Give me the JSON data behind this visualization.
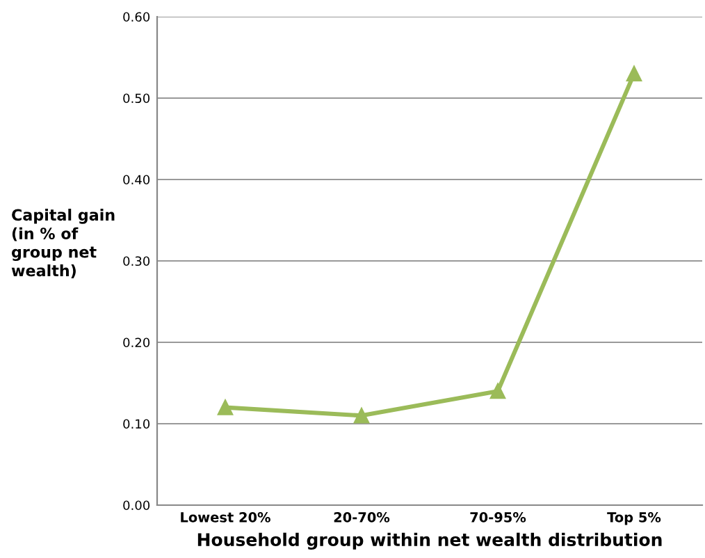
{
  "chart_data": {
    "type": "line",
    "xlabel": "Household group within net wealth distribution",
    "ylabel": "Capital gain\n(in % of\ngroup net\nwealth)",
    "categories": [
      "Lowest 20%",
      "20-70%",
      "70-95%",
      "Top 5%"
    ],
    "series": [
      {
        "color": "#9bbb59",
        "values": [
          0.12,
          0.11,
          0.14,
          0.53
        ]
      }
    ],
    "ylim": [
      0,
      0.6
    ],
    "yticks": [
      {
        "value": 0,
        "label": "0.00"
      },
      {
        "value": 0.1,
        "label": "0.10"
      },
      {
        "value": 0.2,
        "label": "0.20"
      },
      {
        "value": 0.3,
        "label": "0.30"
      },
      {
        "value": 0.4,
        "label": "0.40"
      },
      {
        "value": 0.5,
        "label": "0.50"
      },
      {
        "value": 0.6,
        "label": "0.60"
      }
    ],
    "grid": "y",
    "marker": "triangle",
    "line_style": "solid",
    "legend": false
  }
}
